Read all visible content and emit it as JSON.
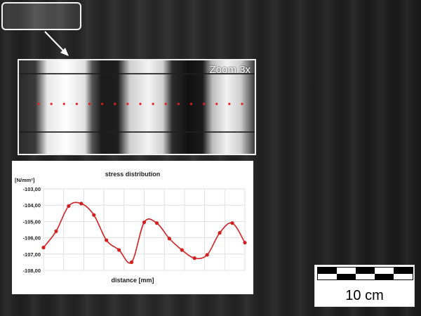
{
  "zoom_label": "Zoom 3x",
  "scale_label": "10 cm",
  "colors": {
    "curve": "#d21f1f",
    "dots": "#e02020"
  },
  "chart_data": {
    "type": "line",
    "title": "stress distribution",
    "xlabel": "distance [mm]",
    "ylabel": "[N/mm²]",
    "ylim": [
      -108,
      -103
    ],
    "yticks": [
      "-103,00",
      "-104,00",
      "-105,00",
      "-106,00",
      "-107,00",
      "-108,00"
    ],
    "ytick_values": [
      -103,
      -104,
      -105,
      -106,
      -107,
      -108
    ],
    "grid": true,
    "series": [
      {
        "values": [
          -106.6,
          -105.6,
          -104.05,
          -103.9,
          -104.6,
          -106.15,
          -106.75,
          -107.5,
          -105.05,
          -105.1,
          -106.05,
          -106.75,
          -107.25,
          -107.05,
          -105.7,
          -105.1,
          -106.3
        ]
      }
    ]
  }
}
